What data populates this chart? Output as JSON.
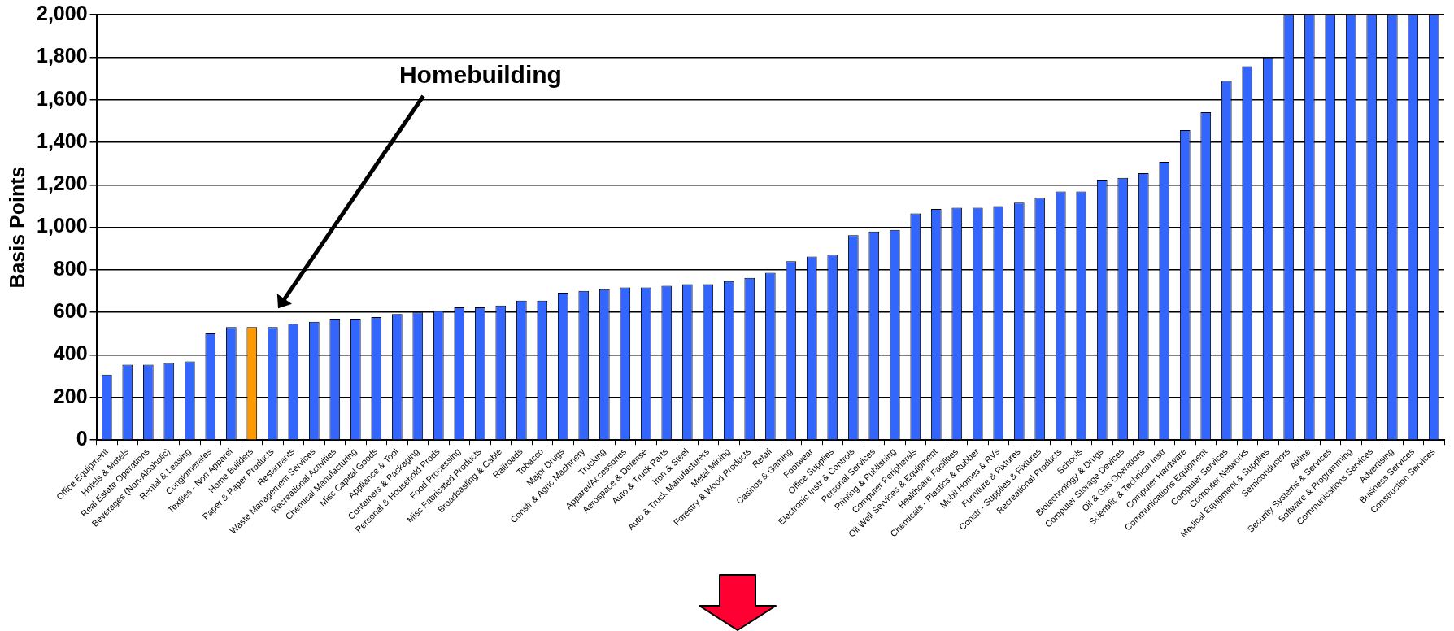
{
  "chart_data": {
    "type": "bar",
    "ylabel": "Basis Points",
    "categories": [
      "Office Equipment",
      "Hotels & Motels",
      "Real Estate Operations",
      "Beverages (Non-Alcoholic)",
      "Rental & Leasing",
      "Conglomerates",
      "Textiles - Non Apparel",
      "Home Builders",
      "Paper & Paper Products",
      "Restaurants",
      "Waste Management Services",
      "Recreational Activities",
      "Chemical Manufacturing",
      "Misc Capital Goods",
      "Appliance & Tool",
      "Containers & Packaging",
      "Personal & Household Prods",
      "Food Processing",
      "Misc Fabricated Products",
      "Broadcasting & Cable",
      "Railroads",
      "Tobacco",
      "Major Drugs",
      "Constr & Agric Machinery",
      "Trucking",
      "Apparel/Accessories",
      "Aerospace & Defense",
      "Auto & Truck Parts",
      "Iron & Steel",
      "Auto & Truck Manufacturers",
      "Metal Mining",
      "Forestry & Wood Products",
      "Retail",
      "Casinos & Gaming",
      "Footwear",
      "Office Supplies",
      "Electronic Instr & Controls",
      "Personal Services",
      "Printing & Publishing",
      "Computer Peripherals",
      "Oil Well Services & Equipment",
      "Healthcare Facilities",
      "Chemicals - Plastics & Rubber",
      "Mobil Homes & RVs",
      "Furniture & Fixtures",
      "Constr - Supplies & Fixtures",
      "Recreational Products",
      "Schools",
      "Biotechnology & Drugs",
      "Computer Storage Devices",
      "Oil & Gas Operations",
      "Scientific & Technical Instr",
      "Computer Hardware",
      "Communications Equipment",
      "Computer Services",
      "Computer Networks",
      "Medical Equipment & Supplies",
      "Semiconductors",
      "Airline",
      "Security Systems & Services",
      "Software & Programming",
      "Communications Services",
      "Advertising",
      "Business Services",
      "Construction Services"
    ],
    "values": [
      307,
      354,
      354,
      362,
      370,
      501,
      531,
      531,
      531,
      547,
      556,
      570,
      570,
      578,
      592,
      600,
      608,
      624,
      624,
      632,
      655,
      655,
      693,
      701,
      709,
      717,
      717,
      725,
      733,
      733,
      747,
      762,
      786,
      841,
      863,
      871,
      963,
      980,
      988,
      1065,
      1086,
      1092,
      1092,
      1100,
      1116,
      1139,
      1169,
      1169,
      1224,
      1233,
      1255,
      1308,
      1457,
      1541,
      1688,
      1757,
      1798,
      2000,
      2000,
      2000,
      2000,
      2000,
      2000,
      2000,
      2000
    ],
    "colors": [
      "#3366ff",
      "#3366ff",
      "#3366ff",
      "#3366ff",
      "#3366ff",
      "#3366ff",
      "#3366ff",
      "#ff9900",
      "#3366ff",
      "#3366ff",
      "#3366ff",
      "#3366ff",
      "#3366ff",
      "#3366ff",
      "#3366ff",
      "#3366ff",
      "#3366ff",
      "#3366ff",
      "#3366ff",
      "#3366ff",
      "#3366ff",
      "#3366ff",
      "#3366ff",
      "#3366ff",
      "#3366ff",
      "#3366ff",
      "#3366ff",
      "#3366ff",
      "#3366ff",
      "#3366ff",
      "#3366ff",
      "#3366ff",
      "#3366ff",
      "#3366ff",
      "#3366ff",
      "#3366ff",
      "#3366ff",
      "#3366ff",
      "#3366ff",
      "#3366ff",
      "#3366ff",
      "#3366ff",
      "#3366ff",
      "#3366ff",
      "#3366ff",
      "#3366ff",
      "#3366ff",
      "#3366ff",
      "#3366ff",
      "#3366ff",
      "#3366ff",
      "#3366ff",
      "#3366ff",
      "#3366ff",
      "#3366ff",
      "#3366ff",
      "#3366ff",
      "#3366ff",
      "#3366ff",
      "#3366ff",
      "#3366ff",
      "#3366ff",
      "#3366ff",
      "#3366ff",
      "#3366ff"
    ],
    "ylim": [
      0,
      2000
    ],
    "yticks": [
      0,
      200,
      400,
      600,
      800,
      {
        "value": 1000,
        "label": "1,000"
      },
      {
        "value": 1200,
        "label": "1,200"
      },
      {
        "value": 1400,
        "label": "1,400"
      },
      {
        "value": 1600,
        "label": "1,600"
      },
      {
        "value": 1800,
        "label": "1,800"
      },
      {
        "value": 2000,
        "label": "2,000"
      }
    ],
    "grid": "y",
    "annotations": [
      "Homebuilding"
    ]
  }
}
